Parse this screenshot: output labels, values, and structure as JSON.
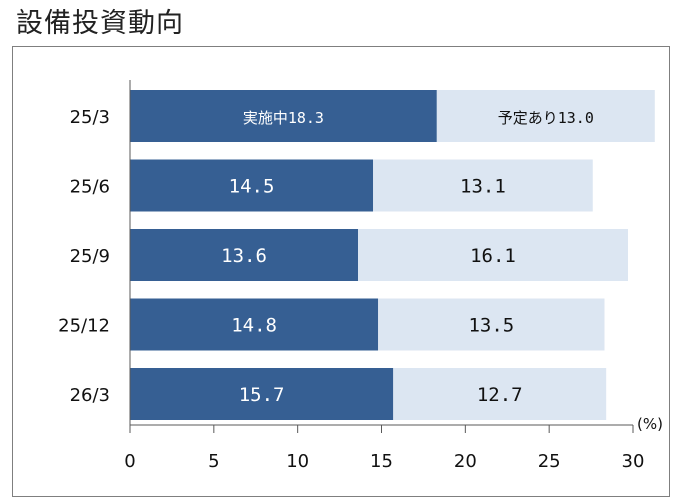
{
  "title": "設備投資動向",
  "chart_data": {
    "type": "bar",
    "orientation": "horizontal",
    "stacked": true,
    "categories": [
      "25/3",
      "25/6",
      "25/9",
      "25/12",
      "26/3"
    ],
    "series": [
      {
        "values": [
          18.3,
          14.5,
          13.6,
          14.8,
          15.7
        ],
        "color": "#365f93"
      },
      {
        "values": [
          13.0,
          13.1,
          16.1,
          13.5,
          12.7
        ],
        "color": "#dce6f2"
      }
    ],
    "data_labels": [
      [
        "実施中18.3",
        "予定あり13.0"
      ],
      [
        "14.5",
        "13.1"
      ],
      [
        "13.6",
        "16.1"
      ],
      [
        "14.8",
        "13.5"
      ],
      [
        "15.7",
        "12.7"
      ]
    ],
    "xlim": [
      0,
      30
    ],
    "xticks": [
      "0",
      "5",
      "10",
      "15",
      "20",
      "25",
      "30"
    ],
    "unit": "(%)",
    "grid": false,
    "legend": "none"
  }
}
